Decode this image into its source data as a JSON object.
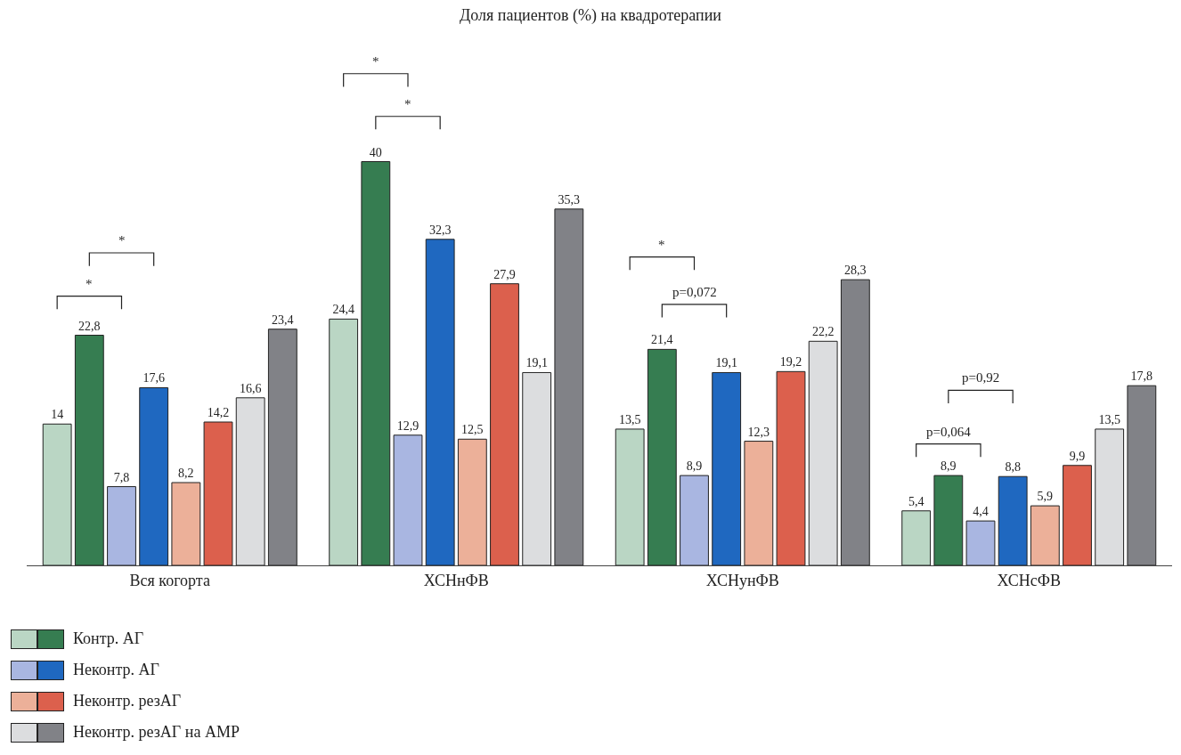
{
  "chart_data": {
    "type": "bar",
    "title": "Доля пациентов (%) на квадротерапии",
    "categories": [
      "Вся когорта",
      "ХСНнФВ",
      "ХСНунФВ",
      "ХСНсФВ"
    ],
    "series": [
      {
        "name": "Контр. АГ",
        "color": "#bad6c4",
        "values": [
          14,
          24.4,
          13.5,
          5.4
        ],
        "value_labels": [
          "14",
          "24,4",
          "13,5",
          "5,4"
        ]
      },
      {
        "color": "#367d51",
        "values": [
          22.8,
          40,
          21.4,
          8.9
        ],
        "value_labels": [
          "22,8",
          "40",
          "21,4",
          "8,9"
        ]
      },
      {
        "name": "Неконтр. АГ",
        "color": "#a9b6e1",
        "values": [
          7.8,
          12.9,
          8.9,
          4.4
        ],
        "value_labels": [
          "7,8",
          "12,9",
          "8,9",
          "4,4"
        ]
      },
      {
        "color": "#1f68c0",
        "values": [
          17.6,
          32.3,
          19.1,
          8.8
        ],
        "value_labels": [
          "17,6",
          "32,3",
          "19,1",
          "8,8"
        ]
      },
      {
        "name": "Неконтр. резАГ",
        "color": "#ecb099",
        "values": [
          8.2,
          12.5,
          12.3,
          5.9
        ],
        "value_labels": [
          "8,2",
          "12,5",
          "12,3",
          "5,9"
        ]
      },
      {
        "color": "#dc604d",
        "values": [
          14.2,
          27.9,
          19.2,
          9.9
        ],
        "value_labels": [
          "14,2",
          "27,9",
          "19,2",
          "9,9"
        ]
      },
      {
        "name": "Неконтр. резАГ на АМР",
        "color": "#dcdddf",
        "values": [
          16.6,
          19.1,
          22.2,
          13.5
        ],
        "value_labels": [
          "16,6",
          "19,1",
          "22,2",
          "13,5"
        ]
      },
      {
        "color": "#818287",
        "values": [
          23.4,
          35.3,
          28.3,
          17.8
        ],
        "value_labels": [
          "23,4",
          "35,3",
          "28,3",
          "17,8"
        ]
      }
    ],
    "annotations": [
      "*",
      "*",
      "*",
      "*",
      "*",
      "p=0,072",
      "p=0,064",
      "p=0,92"
    ],
    "legend": "bottom left"
  }
}
